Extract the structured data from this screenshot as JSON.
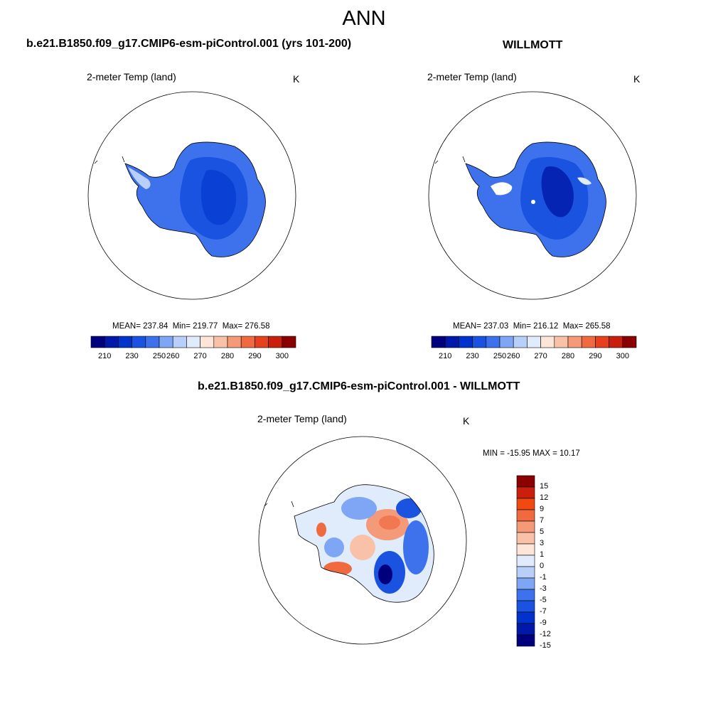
{
  "figure": {
    "title": "ANN"
  },
  "panels": [
    {
      "title": "b.e21.B1850.f09_g17.CMIP6-esm-piControl.001 (yrs 101-200)",
      "variable": "2-meter Temp (land)",
      "units": "K",
      "stats": {
        "mean_label": "MEAN= 237.84",
        "min_label": "Min= 219.77",
        "max_label": "Max= 276.58"
      }
    },
    {
      "title": "WILLMOTT",
      "variable": "2-meter Temp (land)",
      "units": "K",
      "stats": {
        "mean_label": "MEAN= 237.03",
        "min_label": "Min= 216.12",
        "max_label": "Max= 265.58"
      }
    },
    {
      "title": "b.e21.B1850.f09_g17.CMIP6-esm-piControl.001 - WILLMOTT",
      "variable": "2-meter Temp (land)",
      "units": "K",
      "stats": {
        "minmax_label": "MIN = -15.95 MAX =  10.17"
      }
    }
  ],
  "colorbars": {
    "absolute": {
      "colors": [
        "#00007f",
        "#0019a8",
        "#0033cc",
        "#1a53e0",
        "#3d72ec",
        "#7ea6f5",
        "#b8cff9",
        "#e0ecfc",
        "#fde5d8",
        "#f9c2a8",
        "#f59a78",
        "#f06a40",
        "#e6401c",
        "#c8200c",
        "#8b0000"
      ],
      "tick_labels": [
        "210",
        "230",
        "250",
        "260",
        "270",
        "280",
        "290",
        "300"
      ]
    },
    "difference": {
      "colors": [
        "#00007f",
        "#0019a8",
        "#0033cc",
        "#1a53e0",
        "#3d72ec",
        "#7ea6f5",
        "#b8cff9",
        "#e0ecfc",
        "#fde5d8",
        "#f9c2a8",
        "#f59a78",
        "#f06a40",
        "#f04a10",
        "#c8200c",
        "#8b0000"
      ],
      "tick_labels": [
        "15",
        "12",
        "9",
        "7",
        "5",
        "3",
        "1",
        "0",
        "-1",
        "-3",
        "-5",
        "-7",
        "-9",
        "-12",
        "-15"
      ]
    }
  }
}
